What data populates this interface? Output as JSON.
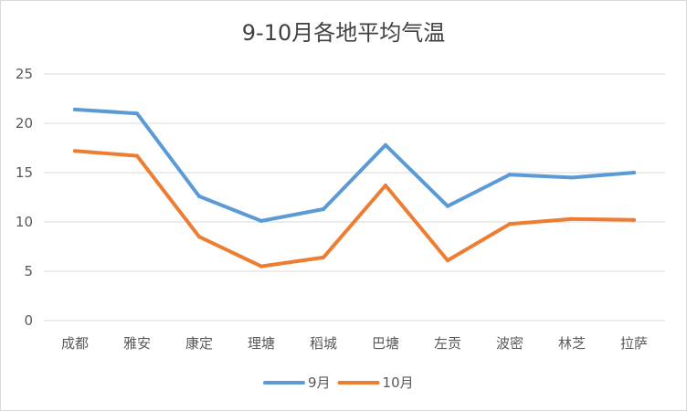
{
  "chart_data": {
    "type": "line",
    "title": "9-10月各地平均气温",
    "xlabel": "",
    "ylabel": "",
    "ylim": [
      0,
      25
    ],
    "yticks": [
      0,
      5,
      10,
      15,
      20,
      25
    ],
    "grid": true,
    "legend_position": "bottom",
    "categories": [
      "成都",
      "雅安",
      "康定",
      "理塘",
      "稻城",
      "巴塘",
      "左贡",
      "波密",
      "林芝",
      "拉萨"
    ],
    "series": [
      {
        "name": "9月",
        "color": "#5b9bd5",
        "values": [
          21.4,
          21.0,
          12.6,
          10.1,
          11.3,
          17.8,
          11.6,
          14.8,
          14.5,
          15.0
        ]
      },
      {
        "name": "10月",
        "color": "#ed7d31",
        "values": [
          17.2,
          16.7,
          8.5,
          5.5,
          6.4,
          13.7,
          6.1,
          9.8,
          10.3,
          10.2
        ]
      }
    ]
  }
}
